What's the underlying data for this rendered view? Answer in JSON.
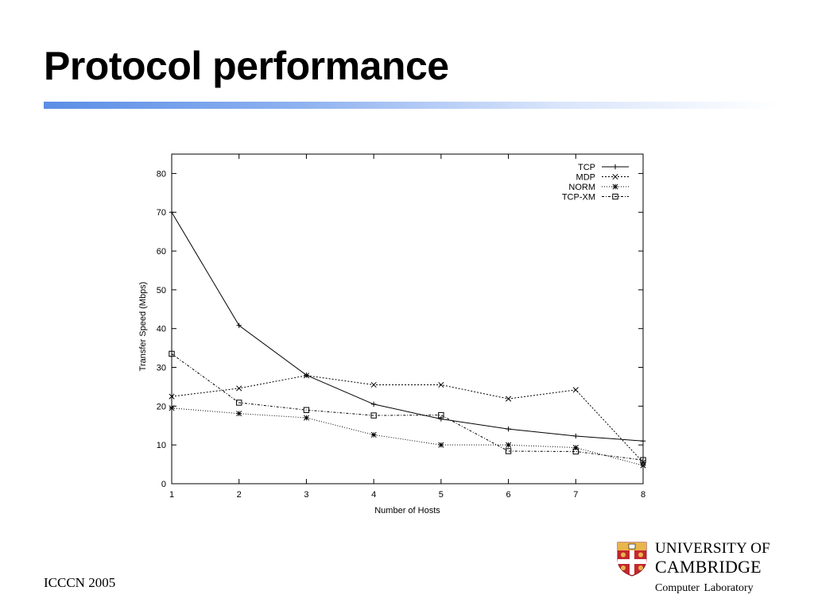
{
  "slide": {
    "title": "Protocol performance",
    "footer": "ICCCN 2005"
  },
  "logo": {
    "line1": "UNIVERSITY OF",
    "line2": "CAMBRIDGE",
    "line3": "Computer Laboratory",
    "shield_icon": "cambridge-shield",
    "shield_colors": {
      "field": "#c4272f",
      "cross": "#ffffff",
      "lions": "#e8b64a",
      "chief": "#e8b64a"
    }
  },
  "chart_data": {
    "type": "line",
    "title": "",
    "xlabel": "Number of Hosts",
    "ylabel": "Transfer Speed (Mbps)",
    "xlim": [
      1,
      8
    ],
    "ylim": [
      0,
      85
    ],
    "x": [
      1,
      2,
      3,
      4,
      5,
      6,
      7,
      8
    ],
    "xticks": [
      "1",
      "2",
      "3",
      "4",
      "5",
      "6",
      "7",
      "8"
    ],
    "yticks": [
      "0",
      "10",
      "20",
      "30",
      "40",
      "50",
      "60",
      "70",
      "80"
    ],
    "grid": false,
    "legend_position": "top-right",
    "series": [
      {
        "name": "TCP",
        "marker": "plus",
        "dash": "solid",
        "values": [
          70,
          40.8,
          28,
          20.5,
          16.7,
          14.1,
          12.3,
          11
        ]
      },
      {
        "name": "MDP",
        "marker": "cross",
        "dash": "dotted",
        "values": [
          22.5,
          24.6,
          27.9,
          25.5,
          25.5,
          21.9,
          24.2,
          5.5
        ]
      },
      {
        "name": "NORM",
        "marker": "star",
        "dash": "fine-dotted",
        "values": [
          19.5,
          18.1,
          17,
          12.6,
          10,
          10,
          9.3,
          4.7
        ]
      },
      {
        "name": "TCP-XM",
        "marker": "square",
        "dash": "dash-dot",
        "values": [
          33.5,
          20.9,
          19,
          17.6,
          17.7,
          8.4,
          8.3,
          6.1
        ]
      }
    ]
  }
}
